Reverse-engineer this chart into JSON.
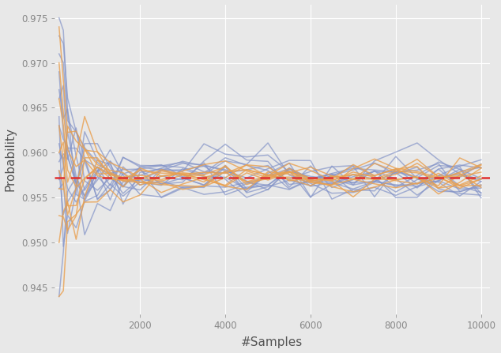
{
  "title": "",
  "xlabel": "#Samples",
  "ylabel": "Probability",
  "xlim": [
    0,
    10200
  ],
  "ylim": [
    0.942,
    0.9765
  ],
  "yticks": [
    0.945,
    0.95,
    0.955,
    0.96,
    0.965,
    0.97,
    0.975
  ],
  "xticks": [
    2000,
    4000,
    6000,
    8000,
    10000
  ],
  "red_line_y": 0.9572,
  "blue_color": "#8494C8",
  "orange_color": "#E8A050",
  "red_color": "#E03030",
  "background_color": "#E8E8E8",
  "grid_color": "#FFFFFF",
  "n_blue_lines": 15,
  "n_orange_lines": 10,
  "alpha_blue": 0.7,
  "alpha_orange": 0.8,
  "linewidth": 1.1
}
